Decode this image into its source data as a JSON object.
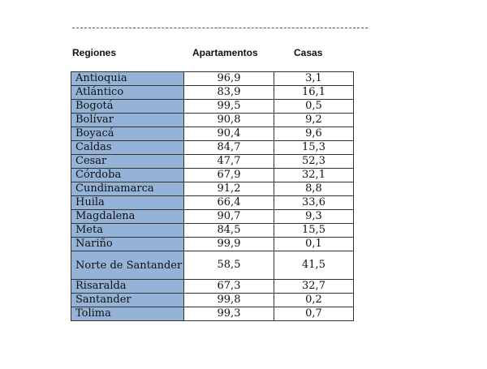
{
  "header": {
    "col_region": "Regiones",
    "col_apartamentos": "Apartamentos",
    "col_casas": "Casas"
  },
  "rows": [
    {
      "region": "Antioquia",
      "apartamentos": "96,9",
      "casas": "3,1"
    },
    {
      "region": "Atlántico",
      "apartamentos": "83,9",
      "casas": "16,1"
    },
    {
      "region": "Bogotá",
      "apartamentos": "99,5",
      "casas": "0,5"
    },
    {
      "region": "Bolívar",
      "apartamentos": "90,8",
      "casas": "9,2"
    },
    {
      "region": "Boyacá",
      "apartamentos": "90,4",
      "casas": "9,6"
    },
    {
      "region": "Caldas",
      "apartamentos": "84,7",
      "casas": "15,3"
    },
    {
      "region": "Cesar",
      "apartamentos": "47,7",
      "casas": "52,3"
    },
    {
      "region": "Córdoba",
      "apartamentos": "67,9",
      "casas": "32,1"
    },
    {
      "region": "Cundinamarca",
      "apartamentos": "91,2",
      "casas": "8,8"
    },
    {
      "region": "Huila",
      "apartamentos": "66,4",
      "casas": "33,6"
    },
    {
      "region": "Magdalena",
      "apartamentos": "90,7",
      "casas": "9,3"
    },
    {
      "region": "Meta",
      "apartamentos": "84,5",
      "casas": "15,5"
    },
    {
      "region": "Nariño",
      "apartamentos": "99,9",
      "casas": "0,1"
    },
    {
      "region": "Norte de Santander",
      "apartamentos": "58,5",
      "casas": "41,5"
    },
    {
      "region": "Risaralda",
      "apartamentos": "67,3",
      "casas": "32,7"
    },
    {
      "region": "Santander",
      "apartamentos": "99,8",
      "casas": "0,2"
    },
    {
      "region": "Tolima",
      "apartamentos": "99,3",
      "casas": "0,7"
    }
  ],
  "colors": {
    "region_fill": "#95b3d7",
    "border": "#333333"
  }
}
